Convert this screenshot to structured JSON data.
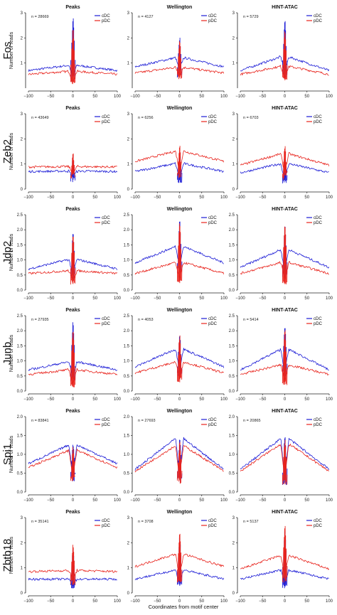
{
  "figure": {
    "shared_xlabel": "Coordinates from motif center",
    "ylabel": "Number of reads",
    "methods": [
      "Peaks",
      "Wellington",
      "HINT-ATAC"
    ],
    "factors": [
      "Fos",
      "Zeb2",
      "Jdp2",
      "Junb",
      "Spi1",
      "Zbtb18"
    ]
  },
  "colors": {
    "cDC": "#1c1cd6",
    "pDC": "#e8231c"
  },
  "chart_data": [
    {
      "type": "line",
      "factor": "Fos",
      "title": "Peaks",
      "n": "n = 28669",
      "xlabel": "",
      "ylabel": "Number of reads",
      "xlim": [
        -100,
        100
      ],
      "ylim": [
        0,
        3
      ],
      "xticks": [
        -100,
        -50,
        0,
        50,
        100
      ],
      "yticks": [
        1,
        2,
        3
      ],
      "series": [
        {
          "name": "cDC",
          "flank": [
            0.7,
            0.93
          ],
          "trough": 0.45,
          "spike": 2.9
        },
        {
          "name": "pDC",
          "flank": [
            0.55,
            0.68
          ],
          "trough": 0.25,
          "spike": 2.4
        }
      ]
    },
    {
      "type": "line",
      "factor": "Fos",
      "title": "Wellington",
      "n": "n = 4127",
      "xlabel": "",
      "ylabel": "",
      "xlim": [
        -100,
        100
      ],
      "ylim": [
        0,
        3
      ],
      "xticks": [
        -100,
        -50,
        0,
        50,
        100
      ],
      "yticks": [
        1,
        2,
        3
      ],
      "series": [
        {
          "name": "cDC",
          "flank": [
            0.85,
            1.25
          ],
          "trough": 0.7,
          "spike": 2.1
        },
        {
          "name": "pDC",
          "flank": [
            0.6,
            0.85
          ],
          "trough": 0.5,
          "spike": 2.0
        }
      ]
    },
    {
      "type": "line",
      "factor": "Fos",
      "title": "HINT-ATAC",
      "n": "n = 5729",
      "xlabel": "",
      "ylabel": "",
      "xlim": [
        -100,
        100
      ],
      "ylim": [
        0,
        3
      ],
      "xticks": [
        -100,
        -50,
        0,
        50,
        100
      ],
      "yticks": [
        1,
        2,
        3
      ],
      "series": [
        {
          "name": "cDC",
          "flank": [
            0.7,
            1.3
          ],
          "trough": 0.6,
          "spike": 2.8
        },
        {
          "name": "pDC",
          "flank": [
            0.55,
            0.9
          ],
          "trough": 0.4,
          "spike": 2.4
        }
      ]
    },
    {
      "type": "line",
      "factor": "Zeb2",
      "title": "Peaks",
      "n": "n = 43649",
      "xlabel": "",
      "ylabel": "Number of reads",
      "xlim": [
        -100,
        100
      ],
      "ylim": [
        0,
        3
      ],
      "xticks": [
        -100,
        -50,
        0,
        50,
        100
      ],
      "yticks": [
        0,
        1,
        2,
        3
      ],
      "series": [
        {
          "name": "cDC",
          "flank": [
            0.7,
            0.72
          ],
          "trough": 0.45,
          "spike": 1.4
        },
        {
          "name": "pDC",
          "flank": [
            0.88,
            0.9
          ],
          "trough": 0.6,
          "spike": 1.5
        }
      ]
    },
    {
      "type": "line",
      "factor": "Zeb2",
      "title": "Wellington",
      "n": "n = 6256",
      "xlabel": "",
      "ylabel": "",
      "xlim": [
        -100,
        100
      ],
      "ylim": [
        0,
        3
      ],
      "xticks": [
        -100,
        -50,
        0,
        50,
        100
      ],
      "yticks": [
        0,
        1,
        2,
        3
      ],
      "series": [
        {
          "name": "cDC",
          "flank": [
            0.7,
            1.05
          ],
          "trough": 0.35,
          "spike": 1.6
        },
        {
          "name": "pDC",
          "flank": [
            1.1,
            1.55
          ],
          "trough": 0.7,
          "spike": 1.8
        }
      ]
    },
    {
      "type": "line",
      "factor": "Zeb2",
      "title": "HINT-ATAC",
      "n": "n = 6703",
      "xlabel": "",
      "ylabel": "",
      "xlim": [
        -100,
        100
      ],
      "ylim": [
        0,
        3
      ],
      "xticks": [
        -100,
        -50,
        0,
        50,
        100
      ],
      "yticks": [
        0,
        1,
        2,
        3
      ],
      "series": [
        {
          "name": "cDC",
          "flank": [
            0.65,
            1.05
          ],
          "trough": 0.35,
          "spike": 1.5
        },
        {
          "name": "pDC",
          "flank": [
            0.95,
            1.45
          ],
          "trough": 0.6,
          "spike": 1.8
        }
      ]
    },
    {
      "type": "line",
      "factor": "Jdp2",
      "title": "Peaks",
      "n": "",
      "xlabel": "",
      "ylabel": "Number of reads",
      "xlim": [
        -100,
        100
      ],
      "ylim": [
        0,
        2.5
      ],
      "xticks": [
        -100,
        -50,
        0,
        50,
        100
      ],
      "yticks": [
        0.0,
        0.5,
        1.0,
        1.5,
        2.0,
        2.5
      ],
      "series": [
        {
          "name": "cDC",
          "flank": [
            0.7,
            1.05
          ],
          "trough": 0.5,
          "spike": 2.0
        },
        {
          "name": "pDC",
          "flank": [
            0.55,
            0.65
          ],
          "trough": 0.3,
          "spike": 1.9
        }
      ]
    },
    {
      "type": "line",
      "factor": "Jdp2",
      "title": "Wellington",
      "n": "",
      "xlabel": "",
      "ylabel": "",
      "xlim": [
        -100,
        100
      ],
      "ylim": [
        0,
        2.5
      ],
      "xticks": [
        -100,
        -50,
        0,
        50,
        100
      ],
      "yticks": [
        0.0,
        0.5,
        1.0,
        1.5,
        2.0,
        2.5
      ],
      "series": [
        {
          "name": "cDC",
          "flank": [
            0.9,
            1.5
          ],
          "trough": 0.8,
          "spike": 2.4
        },
        {
          "name": "pDC",
          "flank": [
            0.55,
            0.95
          ],
          "trough": 0.3,
          "spike": 2.3
        }
      ]
    },
    {
      "type": "line",
      "factor": "Jdp2",
      "title": "HINT-ATAC",
      "n": "",
      "xlabel": "",
      "ylabel": "",
      "xlim": [
        -100,
        100
      ],
      "ylim": [
        0,
        2.5
      ],
      "xticks": [
        -100,
        -50,
        0,
        50,
        100
      ],
      "yticks": [
        0.0,
        0.5,
        1.0,
        1.5,
        2.0,
        2.5
      ],
      "series": [
        {
          "name": "cDC",
          "flank": [
            0.75,
            1.4
          ],
          "trough": 0.6,
          "spike": 2.3
        },
        {
          "name": "pDC",
          "flank": [
            0.55,
            0.95
          ],
          "trough": 0.3,
          "spike": 2.2
        }
      ]
    },
    {
      "type": "line",
      "factor": "Junb",
      "title": "Peaks",
      "n": "n = 27935",
      "xlabel": "",
      "ylabel": "Number of reads",
      "xlim": [
        -100,
        100
      ],
      "ylim": [
        0,
        2.5
      ],
      "xticks": [
        -100,
        -50,
        0,
        50,
        100
      ],
      "yticks": [
        0.0,
        0.5,
        1.0,
        1.5,
        2.0,
        2.5
      ],
      "series": [
        {
          "name": "cDC",
          "flank": [
            0.7,
            1.0
          ],
          "trough": 0.4,
          "spike": 2.4
        },
        {
          "name": "pDC",
          "flank": [
            0.55,
            0.72
          ],
          "trough": 0.2,
          "spike": 2.1
        }
      ]
    },
    {
      "type": "line",
      "factor": "Junb",
      "title": "Wellington",
      "n": "n = 4053",
      "xlabel": "",
      "ylabel": "",
      "xlim": [
        -100,
        100
      ],
      "ylim": [
        0,
        2.5
      ],
      "xticks": [
        -100,
        -50,
        0,
        50,
        100
      ],
      "yticks": [
        0.0,
        0.5,
        1.0,
        1.5,
        2.0,
        2.5
      ],
      "series": [
        {
          "name": "cDC",
          "flank": [
            0.8,
            1.45
          ],
          "trough": 0.7,
          "spike": 2.0
        },
        {
          "name": "pDC",
          "flank": [
            0.6,
            1.0
          ],
          "trough": 0.4,
          "spike": 1.9
        }
      ]
    },
    {
      "type": "line",
      "factor": "Junb",
      "title": "HINT-ATAC",
      "n": "n = 5414",
      "xlabel": "",
      "ylabel": "",
      "xlim": [
        -100,
        100
      ],
      "ylim": [
        0,
        2.5
      ],
      "xticks": [
        -100,
        -50,
        0,
        50,
        100
      ],
      "yticks": [
        0.0,
        0.5,
        1.0,
        1.5,
        2.0,
        2.5
      ],
      "series": [
        {
          "name": "cDC",
          "flank": [
            0.7,
            1.45
          ],
          "trough": 0.6,
          "spike": 2.3
        },
        {
          "name": "pDC",
          "flank": [
            0.55,
            0.9
          ],
          "trough": 0.3,
          "spike": 2.1
        }
      ]
    },
    {
      "type": "line",
      "factor": "Spi1",
      "title": "Peaks",
      "n": "n = 83841",
      "xlabel": "",
      "ylabel": "Number of reads",
      "xlim": [
        -100,
        100
      ],
      "ylim": [
        0,
        2
      ],
      "xticks": [
        -100,
        -50,
        0,
        50,
        100
      ],
      "yticks": [
        0.0,
        0.5,
        1.0,
        1.5,
        2.0
      ],
      "series": [
        {
          "name": "cDC",
          "flank": [
            0.75,
            1.3
          ],
          "trough": 0.45,
          "spike": 1.35
        },
        {
          "name": "pDC",
          "flank": [
            0.65,
            1.15
          ],
          "trough": 0.4,
          "spike": 1.2
        }
      ]
    },
    {
      "type": "line",
      "factor": "Spi1",
      "title": "Wellington",
      "n": "n = 27693",
      "xlabel": "",
      "ylabel": "",
      "xlim": [
        -100,
        100
      ],
      "ylim": [
        0,
        2
      ],
      "xticks": [
        -100,
        -50,
        0,
        50,
        100
      ],
      "yticks": [
        0.0,
        0.5,
        1.0,
        1.5,
        2.0
      ],
      "series": [
        {
          "name": "cDC",
          "flank": [
            0.6,
            1.5
          ],
          "trough": 0.4,
          "spike": 1.45
        },
        {
          "name": "pDC",
          "flank": [
            0.55,
            1.3
          ],
          "trough": 0.35,
          "spike": 1.35
        }
      ]
    },
    {
      "type": "line",
      "factor": "Spi1",
      "title": "HINT-ATAC",
      "n": "n = 20865",
      "xlabel": "",
      "ylabel": "",
      "xlim": [
        -100,
        100
      ],
      "ylim": [
        0,
        2
      ],
      "xticks": [
        -100,
        -50,
        0,
        50,
        100
      ],
      "yticks": [
        0.0,
        0.5,
        1.0,
        1.5,
        2.0
      ],
      "series": [
        {
          "name": "cDC",
          "flank": [
            0.6,
            1.5
          ],
          "trough": 0.3,
          "spike": 1.5
        },
        {
          "name": "pDC",
          "flank": [
            0.55,
            1.35
          ],
          "trough": 0.3,
          "spike": 1.4
        }
      ]
    },
    {
      "type": "line",
      "factor": "Zbtb18",
      "title": "Peaks",
      "n": "n = 35141",
      "xlabel": "",
      "ylabel": "Number of reads",
      "xlim": [
        -100,
        100
      ],
      "ylim": [
        0,
        3
      ],
      "xticks": [
        -100,
        -50,
        0,
        50,
        100
      ],
      "yticks": [
        0,
        1,
        2,
        3
      ],
      "series": [
        {
          "name": "cDC",
          "flank": [
            0.55,
            0.55
          ],
          "trough": 0.3,
          "spike": 1.8
        },
        {
          "name": "pDC",
          "flank": [
            0.85,
            0.9
          ],
          "trough": 0.5,
          "spike": 2.0
        }
      ]
    },
    {
      "type": "line",
      "factor": "Zbtb18",
      "title": "Wellington",
      "n": "n = 3708",
      "xlabel": "",
      "ylabel": "",
      "xlim": [
        -100,
        100
      ],
      "ylim": [
        0,
        3
      ],
      "xticks": [
        -100,
        -50,
        0,
        50,
        100
      ],
      "yticks": [
        0,
        1,
        2,
        3
      ],
      "series": [
        {
          "name": "cDC",
          "flank": [
            0.55,
            0.95
          ],
          "trough": 0.4,
          "spike": 2.3
        },
        {
          "name": "pDC",
          "flank": [
            1.05,
            1.6
          ],
          "trough": 0.6,
          "spike": 2.5
        }
      ]
    },
    {
      "type": "line",
      "factor": "Zbtb18",
      "title": "HINT-ATAC",
      "n": "n = 5137",
      "xlabel": "",
      "ylabel": "",
      "xlim": [
        -100,
        100
      ],
      "ylim": [
        0,
        3
      ],
      "xticks": [
        -100,
        -50,
        0,
        50,
        100
      ],
      "yticks": [
        0,
        1,
        2,
        3
      ],
      "series": [
        {
          "name": "cDC",
          "flank": [
            0.55,
            0.95
          ],
          "trough": 0.3,
          "spike": 2.6
        },
        {
          "name": "pDC",
          "flank": [
            0.95,
            1.55
          ],
          "trough": 0.6,
          "spike": 2.8
        }
      ]
    }
  ]
}
